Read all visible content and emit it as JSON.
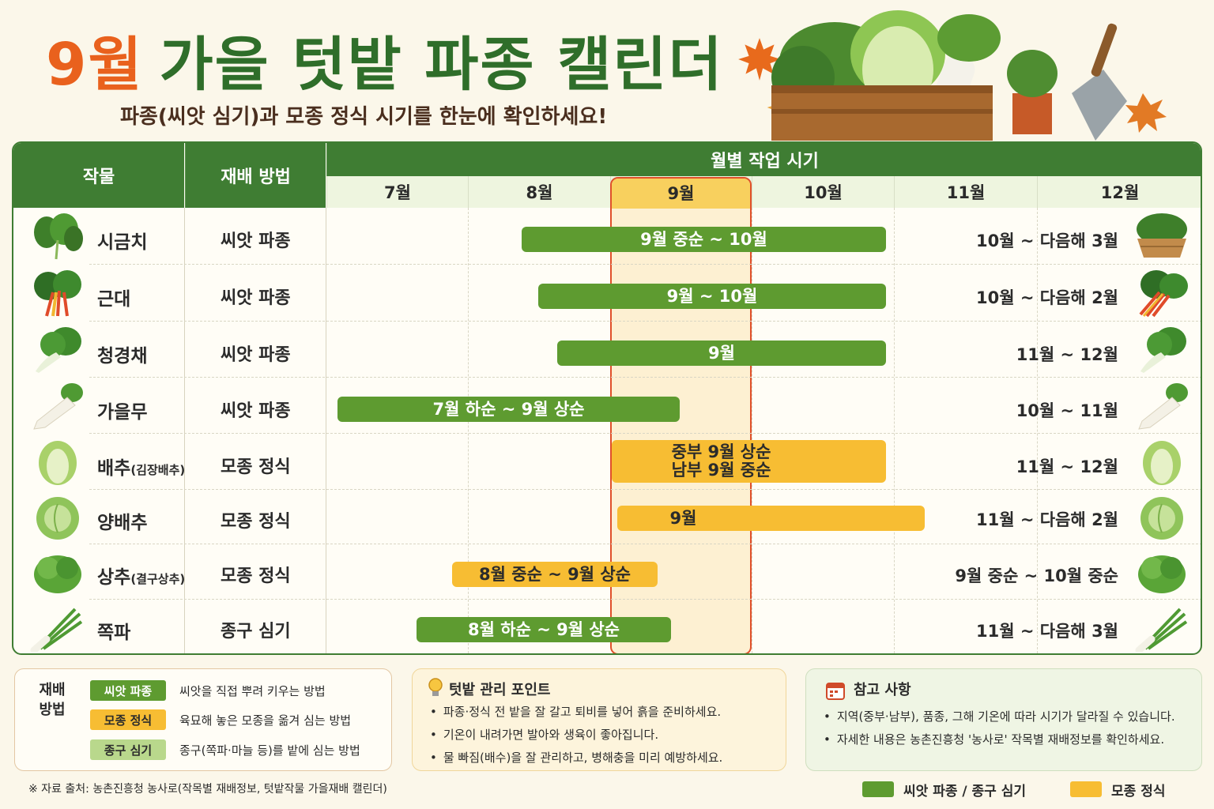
{
  "header": {
    "title_month": "9월",
    "title_rest": "가을 텃밭 파종 캘린더",
    "subtitle": "파종(씨앗 심기)과 모종 정식 시기를 한눈에 확인하세요!"
  },
  "table": {
    "col_crop": "작물",
    "col_method": "재배 방법",
    "col_schedule": "월별 작업 시기",
    "months": [
      "7월",
      "8월",
      "9월",
      "10월",
      "11월",
      "12월"
    ],
    "rows": [
      {
        "icon": "spinach-icon",
        "name": "시금치",
        "note": "",
        "method": "씨앗 파종",
        "bar_type": "green",
        "bar_label": "9월 중순 ~ 10월",
        "bar_label_2": "",
        "harvest": "10월 ~ 다음해 3월"
      },
      {
        "icon": "chard-icon",
        "name": "근대",
        "note": "",
        "method": "씨앗 파종",
        "bar_type": "green",
        "bar_label": "9월  ~ 10월",
        "bar_label_2": "",
        "harvest": "10월 ~ 다음해 2월"
      },
      {
        "icon": "bok-choy-icon",
        "name": "청경채",
        "note": "",
        "method": "씨앗 파종",
        "bar_type": "green",
        "bar_label": "9월",
        "bar_label_2": "",
        "harvest": "11월 ~ 12월"
      },
      {
        "icon": "radish-icon",
        "name": "가을무",
        "note": "",
        "method": "씨앗 파종",
        "bar_type": "green",
        "bar_label": "7월 하순  ~ 9월 상순",
        "bar_label_2": "",
        "harvest": "10월 ~ 11월"
      },
      {
        "icon": "napa-cabbage-icon",
        "name": "배추",
        "note": "(김장배추)",
        "method": "모종 정식",
        "bar_type": "yellow",
        "bar_label": "중부 9월 상순",
        "bar_label_2": "남부 9월 중순",
        "harvest": "11월 ~ 12월"
      },
      {
        "icon": "cabbage-icon",
        "name": "양배추",
        "note": "",
        "method": "모종 정식",
        "bar_type": "yellow",
        "bar_label": "9월",
        "bar_label_2": "",
        "harvest": "11월 ~ 다음해 2월"
      },
      {
        "icon": "lettuce-icon",
        "name": "상추",
        "note": "(결구상추)",
        "method": "모종 정식",
        "bar_type": "yellow",
        "bar_label": "8월 중순 ~ 9월 상순",
        "bar_label_2": "",
        "harvest": "9월 중순 ~ 10월 중순"
      },
      {
        "icon": "scallion-icon",
        "name": "쪽파",
        "note": "",
        "method": "종구 심기",
        "bar_type": "green",
        "bar_label": "8월 하순  ~ 9월 상순",
        "bar_label_2": "",
        "harvest": "11월 ~ 다음해 3월"
      }
    ]
  },
  "legend": {
    "title": "재배 방법",
    "items": [
      {
        "chip": "씨앗 파종",
        "desc": "씨앗을 직접 뿌려 키우는 방법",
        "color": "#5e9b30"
      },
      {
        "chip": "모종 정식",
        "desc": "육묘해 놓은 모종을 옮겨 심는 방법",
        "color": "#f7bd33"
      },
      {
        "chip": "종구 심기",
        "desc": "종구(쪽파·마늘 등)를 밭에 심는 방법",
        "color": "#b9d88c"
      }
    ]
  },
  "tips": {
    "title": "텃밭 관리 포인트",
    "items": [
      "파종·정식 전 밭을 잘 갈고 퇴비를 넣어 흙을 준비하세요.",
      "기온이 내려가면 발아와 생육이 좋아집니다.",
      "물 빠짐(배수)을 잘 관리하고, 병해충을 미리 예방하세요."
    ]
  },
  "reference": {
    "title": "참고 사항",
    "items": [
      "지역(중부·남부), 품종, 그해 기온에 따라 시기가 달라질 수 있습니다.",
      "자세한 내용은 농촌진흥청 '농사로' 작목별 재배정보를 확인하세요."
    ]
  },
  "footer": {
    "source": "※ 자료 출처: 농촌진흥청 농사로(작목별 재배정보, 텃밭작물 가을재배 캘린더)",
    "key_green": "씨앗 파종 / 종구 심기",
    "key_yellow": "모종 정식"
  },
  "colors": {
    "accent_orange": "#e9611d",
    "brand_green": "#2f6e2a",
    "header_green": "#3f7d33",
    "bar_green": "#5e9b30",
    "bar_yellow": "#f7bd33",
    "highlight_red": "#e0502a"
  }
}
